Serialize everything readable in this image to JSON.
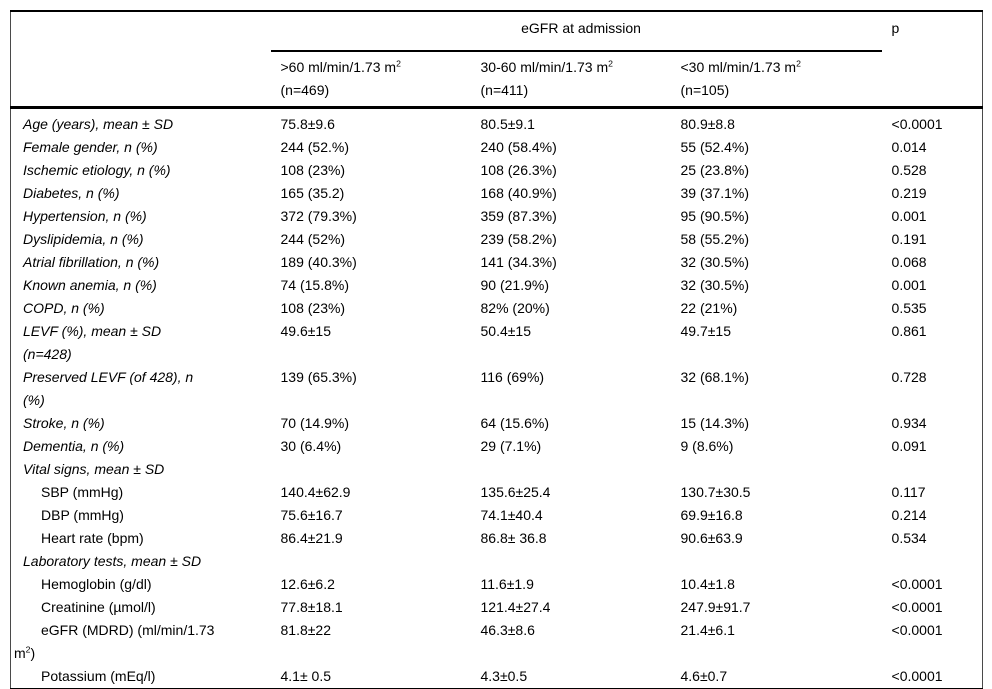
{
  "table": {
    "group_header": "eGFR at admission",
    "p_header": "p",
    "col_headers": [
      ">60 ml/min/1.73 m^2\n(n=469)",
      "30-60 ml/min/1.73 m^2\n(n=411)",
      "<30 ml/min/1.73 m^2\n(n=105)"
    ],
    "rows": [
      {
        "style": "main",
        "label": "Age (years), mean ± SD",
        "values": [
          "75.8±9.6",
          "80.5±9.1",
          "80.9±8.8",
          "<0.0001"
        ]
      },
      {
        "style": "main",
        "label": "Female gender, n (%)",
        "values": [
          "244 (52.%)",
          "240 (58.4%)",
          "55 (52.4%)",
          "0.014"
        ]
      },
      {
        "style": "main",
        "label": "Ischemic etiology, n (%)",
        "values": [
          "108 (23%)",
          "108 (26.3%)",
          "25 (23.8%)",
          "0.528"
        ]
      },
      {
        "style": "main",
        "label": "Diabetes, n (%)",
        "values": [
          "165 (35.2)",
          "168 (40.9%)",
          "39 (37.1%)",
          "0.219"
        ]
      },
      {
        "style": "main",
        "label": "Hypertension, n (%)",
        "values": [
          "372 (79.3%)",
          "359 (87.3%)",
          "95 (90.5%)",
          "0.001"
        ]
      },
      {
        "style": "main",
        "label": "Dyslipidemia, n (%)",
        "values": [
          "244 (52%)",
          "239 (58.2%)",
          "58 (55.2%)",
          "0.191"
        ]
      },
      {
        "style": "main",
        "label": "Atrial fibrillation, n (%)",
        "values": [
          "189 (40.3%)",
          "141 (34.3%)",
          "32 (30.5%)",
          "0.068"
        ]
      },
      {
        "style": "main",
        "label": "Known anemia, n (%)",
        "values": [
          "74 (15.8%)",
          "90 (21.9%)",
          "32 (30.5%)",
          "0.001"
        ]
      },
      {
        "style": "main",
        "label": "COPD, n (%)",
        "values": [
          "108 (23%)",
          "82% (20%)",
          "22 (21%)",
          "0.535"
        ]
      },
      {
        "style": "main",
        "label": "LEVF (%), mean ± SD\n(n=428)",
        "values": [
          "49.6±15",
          "50.4±15",
          "49.7±15",
          "0.861"
        ]
      },
      {
        "style": "main",
        "label": "Preserved LEVF (of 428), n\n(%)",
        "values": [
          "139 (65.3%)",
          "116 (69%)",
          "32 (68.1%)",
          "0.728"
        ]
      },
      {
        "style": "main",
        "label": "Stroke, n (%)",
        "values": [
          "70 (14.9%)",
          "64 (15.6%)",
          "15 (14.3%)",
          "0.934"
        ]
      },
      {
        "style": "main",
        "label": "Dementia, n (%)",
        "values": [
          "30 (6.4%)",
          "29 (7.1%)",
          "9 (8.6%)",
          "0.091"
        ]
      },
      {
        "style": "section",
        "label": "Vital signs, mean ± SD",
        "values": [
          "",
          "",
          "",
          ""
        ]
      },
      {
        "style": "sub",
        "label": "SBP (mmHg)",
        "values": [
          "140.4±62.9",
          "135.6±25.4",
          "130.7±30.5",
          "0.117"
        ]
      },
      {
        "style": "sub",
        "label": "DBP (mmHg)",
        "values": [
          "75.6±16.7",
          "74.1±40.4",
          "69.9±16.8",
          "0.214"
        ]
      },
      {
        "style": "sub",
        "label": "Heart rate (bpm)",
        "values": [
          "86.4±21.9",
          "86.8± 36.8",
          "90.6±63.9",
          "0.534"
        ]
      },
      {
        "style": "section",
        "label": "Laboratory tests, mean ± SD",
        "values": [
          "",
          "",
          "",
          ""
        ]
      },
      {
        "style": "sub",
        "label": "Hemoglobin (g/dl)",
        "values": [
          "12.6±6.2",
          "11.6±1.9",
          "10.4±1.8",
          "<0.0001"
        ]
      },
      {
        "style": "sub",
        "label": "Creatinine (µmol/l)",
        "values": [
          "77.8±18.1",
          "121.4±27.4",
          "247.9±91.7",
          "<0.0001"
        ]
      },
      {
        "style": "egfr",
        "label": "eGFR (MDRD) (ml/min/1.73\nm^2)",
        "values": [
          "81.8±22",
          "46.3±8.6",
          "21.4±6.1",
          "<0.0001"
        ]
      },
      {
        "style": "sub",
        "label": "Potassium (mEq/l)",
        "values": [
          "4.1± 0.5",
          "4.3±0.5",
          "4.6±0.7",
          "<0.0001"
        ]
      }
    ]
  }
}
